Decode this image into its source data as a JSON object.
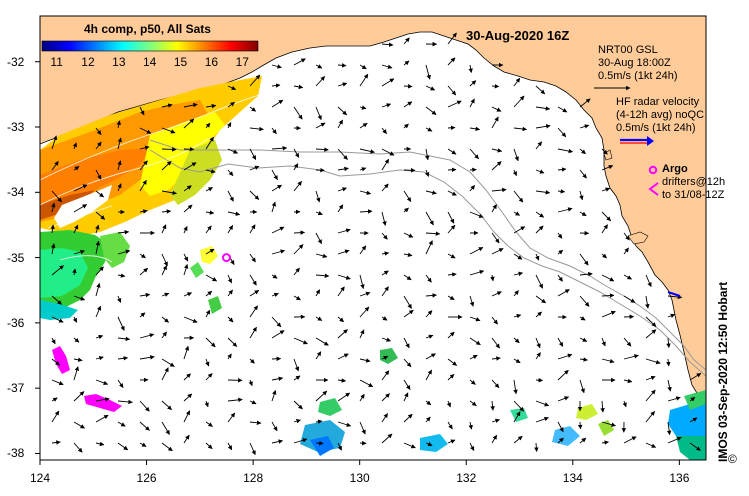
{
  "map": {
    "title": "30-Aug-2020 16Z",
    "composite_label": "4h comp, p50, All Sats",
    "colorbar": {
      "ticks": [
        "11",
        "12",
        "13",
        "14",
        "15",
        "16",
        "17"
      ],
      "min": 10.5,
      "max": 17.5,
      "colors": [
        "#00007f",
        "#0000ff",
        "#007fff",
        "#00ffff",
        "#7fff7f",
        "#ffff00",
        "#ff7f00",
        "#ff0000",
        "#7f0000"
      ]
    },
    "longitude_ticks": [
      "124",
      "126",
      "128",
      "130",
      "132",
      "134",
      "136"
    ],
    "latitude_ticks": [
      "-32",
      "-33",
      "-34",
      "-35",
      "-36",
      "-37",
      "-38"
    ],
    "bounds": {
      "lon_min": 124,
      "lon_max": 136.5,
      "lat_min": -38.1,
      "lat_max": -31.3
    },
    "colors": {
      "land": "#ffcc99",
      "ocean": "#ffffff",
      "argo": "#ff00ff",
      "hf_radar": "#0000ff",
      "drifter": "#ff00ff"
    },
    "legend": {
      "model_lines": [
        "NRT00 GSL",
        "30-Aug 18:00Z",
        "0.5m/s (1kt 24h)"
      ],
      "hf_lines": [
        "HF radar velocity",
        "(4-12h avg) noQC",
        "0.5m/s (1kt 24h)"
      ],
      "argo_label": "Argo",
      "drifter_lines": [
        "drifters@12h",
        "to 31/08-12Z"
      ]
    },
    "argo_float": {
      "lon": 127.5,
      "lat": -35.0
    },
    "credit": "IMOS 03-Sep-2020 12:50 Hobart",
    "copyright_symbol": "©"
  }
}
